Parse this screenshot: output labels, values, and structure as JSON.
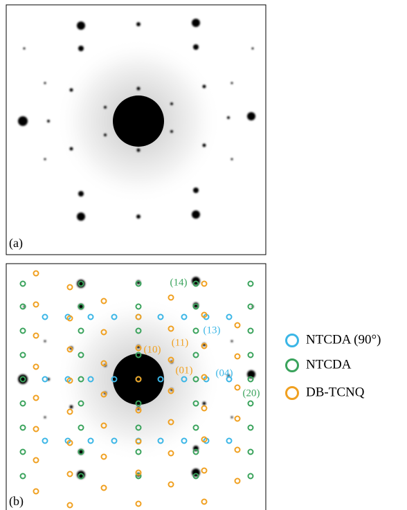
{
  "panels": {
    "a": {
      "label": "(a)"
    },
    "b": {
      "label": "(b)"
    }
  },
  "annotations": [
    {
      "text": "(14)",
      "color": "#3aa35c"
    },
    {
      "text": "(13)",
      "color": "#3bb6e6"
    },
    {
      "text": "(11)",
      "color": "#f0a020"
    },
    {
      "text": "(10)",
      "color": "#f0a020"
    },
    {
      "text": "(01)",
      "color": "#f0a020"
    },
    {
      "text": "(04)",
      "color": "#3bb6e6"
    },
    {
      "text": "(20)",
      "color": "#3aa35c"
    }
  ],
  "legend": [
    {
      "label": "NTCDA (90°)",
      "color": "#3bb6e6"
    },
    {
      "label": "NTCDA",
      "color": "#3aa35c"
    },
    {
      "label": "DB-TCNQ",
      "color": "#f0a020"
    }
  ]
}
